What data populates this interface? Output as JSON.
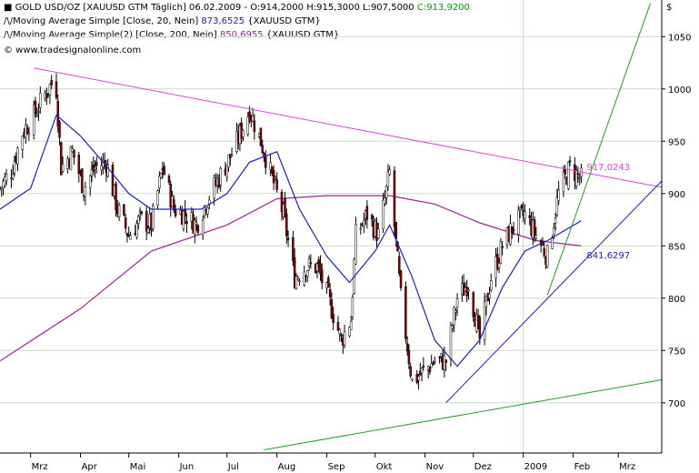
{
  "header": {
    "symbol": "GOLD USD/OZ [XAUUSD GTM  Täglich] 06.02.2009 -",
    "open": "O:914,2000",
    "high": "H:915,3000",
    "low": "L:907,5000",
    "close": "C:913,9200",
    "ma20_label": "Moving Average Simple [Close, 20, Nein]",
    "ma20_value": "873,6525",
    "ma20_suffix": "{XAUUSD GTM}",
    "ma200_label": "Moving Average Simple(2) [Close, 200, Nein]",
    "ma200_value": "850,6955",
    "ma200_suffix": "{XAUUSD GTM}",
    "copyright": "© www.tradesignalonline.com",
    "ma_glyph": "/\\/",
    "currency": "$"
  },
  "colors": {
    "open": "#000000",
    "high": "#000000",
    "low": "#000000",
    "close": "#00a000",
    "ma20": "#2020c0",
    "ma200": "#a0209a",
    "magenta_line": "#e040e0",
    "blue_line": "#2020c0",
    "green_line": "#20a020",
    "candle_up": "#ffffff",
    "candle_down": "#8b0000",
    "grid": "#c8dcc8"
  },
  "annotations": {
    "magenta_value": "917,0243",
    "blue_value": "841,6297"
  },
  "chart_data": {
    "type": "candlestick",
    "title": "GOLD USD/OZ [XAUUSD GTM Täglich]",
    "x_ticks": [
      "Mrz",
      "Apr",
      "Mai",
      "Jun",
      "Jul",
      "Aug",
      "Sep",
      "Okt",
      "Nov",
      "Dez",
      "2009",
      "Feb",
      "Mrz"
    ],
    "y_ticks": [
      700,
      750,
      800,
      850,
      900,
      950,
      1000,
      1050
    ],
    "ylim": [
      652,
      1085
    ],
    "x_range": [
      "2008-02-11",
      "2009-03-28"
    ],
    "grid": true,
    "close_series": [
      [
        "2008-02-11",
        905
      ],
      [
        "2008-02-18",
        922
      ],
      [
        "2008-02-25",
        958
      ],
      [
        "2008-03-03",
        975
      ],
      [
        "2008-03-10",
        995
      ],
      [
        "2008-03-14",
        1005
      ],
      [
        "2008-03-17",
        1000
      ],
      [
        "2008-03-20",
        925
      ],
      [
        "2008-03-27",
        940
      ],
      [
        "2008-04-03",
        905
      ],
      [
        "2008-04-10",
        925
      ],
      [
        "2008-04-17",
        930
      ],
      [
        "2008-04-24",
        885
      ],
      [
        "2008-05-01",
        860
      ],
      [
        "2008-05-08",
        875
      ],
      [
        "2008-05-15",
        870
      ],
      [
        "2008-05-22",
        925
      ],
      [
        "2008-05-29",
        885
      ],
      [
        "2008-06-05",
        880
      ],
      [
        "2008-06-12",
        870
      ],
      [
        "2008-06-19",
        895
      ],
      [
        "2008-06-26",
        915
      ],
      [
        "2008-07-03",
        935
      ],
      [
        "2008-07-10",
        960
      ],
      [
        "2008-07-15",
        980
      ],
      [
        "2008-07-22",
        950
      ],
      [
        "2008-07-29",
        915
      ],
      [
        "2008-08-05",
        880
      ],
      [
        "2008-08-12",
        820
      ],
      [
        "2008-08-19",
        830
      ],
      [
        "2008-08-26",
        830
      ],
      [
        "2008-09-02",
        800
      ],
      [
        "2008-09-10",
        760
      ],
      [
        "2008-09-16",
        780
      ],
      [
        "2008-09-19",
        860
      ],
      [
        "2008-09-26",
        880
      ],
      [
        "2008-10-03",
        860
      ],
      [
        "2008-10-10",
        920
      ],
      [
        "2008-10-17",
        800
      ],
      [
        "2008-10-24",
        720
      ],
      [
        "2008-10-31",
        730
      ],
      [
        "2008-11-07",
        740
      ],
      [
        "2008-11-14",
        740
      ],
      [
        "2008-11-21",
        800
      ],
      [
        "2008-11-28",
        815
      ],
      [
        "2008-12-05",
        760
      ],
      [
        "2008-12-12",
        820
      ],
      [
        "2008-12-19",
        850
      ],
      [
        "2008-12-26",
        870
      ],
      [
        "2009-01-02",
        880
      ],
      [
        "2009-01-09",
        860
      ],
      [
        "2009-01-16",
        840
      ],
      [
        "2009-01-23",
        900
      ],
      [
        "2009-01-30",
        925
      ],
      [
        "2009-02-06",
        914
      ]
    ],
    "ma20_series": [
      [
        "2008-02-11",
        885
      ],
      [
        "2008-03-01",
        905
      ],
      [
        "2008-03-17",
        975
      ],
      [
        "2008-04-01",
        955
      ],
      [
        "2008-04-15",
        930
      ],
      [
        "2008-05-01",
        900
      ],
      [
        "2008-05-15",
        885
      ],
      [
        "2008-06-01",
        885
      ],
      [
        "2008-06-15",
        885
      ],
      [
        "2008-07-01",
        900
      ],
      [
        "2008-07-15",
        930
      ],
      [
        "2008-08-01",
        940
      ],
      [
        "2008-08-15",
        885
      ],
      [
        "2008-09-01",
        840
      ],
      [
        "2008-09-15",
        815
      ],
      [
        "2008-10-01",
        845
      ],
      [
        "2008-10-10",
        870
      ],
      [
        "2008-10-24",
        820
      ],
      [
        "2008-11-07",
        760
      ],
      [
        "2008-11-21",
        735
      ],
      [
        "2008-12-05",
        760
      ],
      [
        "2008-12-19",
        810
      ],
      [
        "2009-01-02",
        845
      ],
      [
        "2009-01-16",
        855
      ],
      [
        "2009-02-06",
        874
      ]
    ],
    "ma200_series": [
      [
        "2008-02-11",
        740
      ],
      [
        "2008-04-01",
        790
      ],
      [
        "2008-05-15",
        845
      ],
      [
        "2008-07-01",
        870
      ],
      [
        "2008-08-01",
        895
      ],
      [
        "2008-09-01",
        898
      ],
      [
        "2008-10-10",
        898
      ],
      [
        "2008-11-07",
        890
      ],
      [
        "2008-12-05",
        872
      ],
      [
        "2009-01-09",
        855
      ],
      [
        "2009-02-06",
        850
      ]
    ],
    "trendlines": [
      {
        "name": "magenta",
        "from": [
          "2008-03-03",
          1020
        ],
        "to": [
          "2009-03-28",
          906
        ]
      },
      {
        "name": "blue",
        "from": [
          "2008-11-14",
          700
        ],
        "to": [
          "2009-03-28",
          912
        ]
      },
      {
        "name": "green_long",
        "from": [
          "2008-07-24",
          655
        ],
        "to": [
          "2009-03-28",
          722
        ]
      },
      {
        "name": "green_steep",
        "from": [
          "2009-01-16",
          803
        ],
        "to": [
          "2009-03-21",
          1082
        ]
      }
    ]
  }
}
